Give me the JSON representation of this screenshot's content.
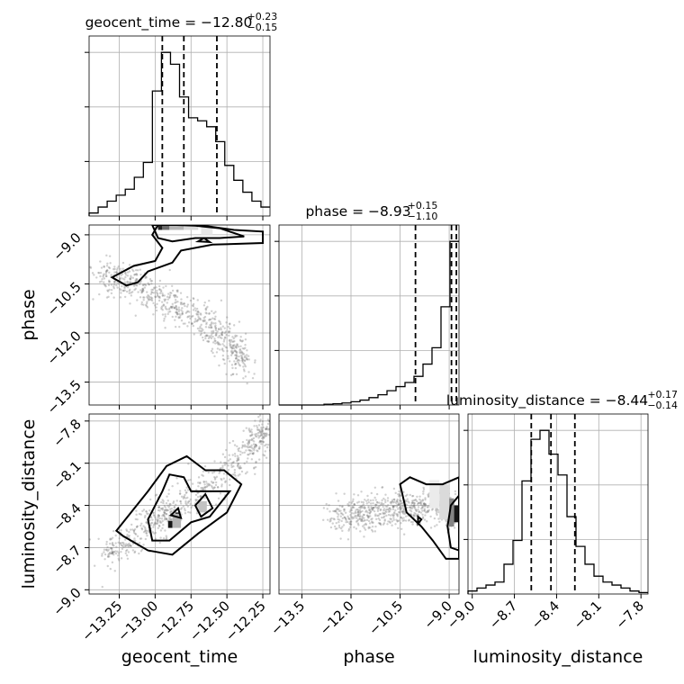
{
  "chart_data": {
    "type": "corner",
    "parameters": [
      "geocent_time",
      "phase",
      "luminosity_distance"
    ],
    "axis_ranges": {
      "geocent_time": [
        -13.46,
        -12.2
      ],
      "phase": [
        -14.2,
        -8.7
      ],
      "luminosity_distance": [
        -9.03,
        -7.75
      ]
    },
    "grid": true,
    "axis_labels": {
      "geocent_time": "geocent_time",
      "phase": "phase",
      "luminosity_distance": "luminosity_distance"
    },
    "ticks": {
      "geocent_time": [
        "−13.25",
        "−13.00",
        "−12.75",
        "−12.50",
        "−12.25"
      ],
      "phase": [
        "−13.5",
        "−12.0",
        "−10.5",
        "−9.0"
      ],
      "luminosity_distance": [
        "−9.0",
        "−8.7",
        "−8.4",
        "−8.1",
        "−7.8"
      ]
    },
    "tick_values": {
      "geocent_time": [
        -13.25,
        -13.0,
        -12.75,
        -12.5,
        -12.25
      ],
      "phase": [
        -13.5,
        -12.0,
        -10.5,
        -9.0
      ],
      "luminosity_distance": [
        -9.0,
        -8.7,
        -8.4,
        -8.1,
        -7.8
      ]
    },
    "titles": [
      {
        "param": "geocent_time",
        "text": "geocent_time = −12.80",
        "sup": "+0.23",
        "sub": "−0.15"
      },
      {
        "param": "phase",
        "text": "phase = −8.93",
        "sup": "+0.15",
        "sub": "−1.10"
      },
      {
        "param": "luminosity_distance",
        "text": "luminosity_distance = −8.44",
        "sup": "+0.17",
        "sub": "−0.14"
      }
    ],
    "quantiles": {
      "geocent_time": [
        -12.95,
        -12.8,
        -12.57
      ],
      "phase": [
        -10.03,
        -8.93,
        -8.78
      ],
      "luminosity_distance": [
        -8.58,
        -8.44,
        -8.27
      ]
    },
    "histograms": {
      "geocent_time": {
        "edges": [
          -13.46,
          -13.397,
          -13.334,
          -13.271,
          -13.208,
          -13.145,
          -13.082,
          -13.019,
          -12.956,
          -12.893,
          -12.83,
          -12.767,
          -12.704,
          -12.641,
          -12.578,
          -12.515,
          -12.452,
          -12.389,
          -12.326,
          -12.263,
          -12.2
        ],
        "counts": [
          1,
          3,
          5,
          7,
          9,
          13,
          18,
          42,
          55,
          51,
          40,
          33,
          32,
          30,
          25,
          17,
          12,
          8,
          5,
          3
        ]
      },
      "phase": {
        "edges": [
          -14.2,
          -13.925,
          -13.65,
          -13.375,
          -13.1,
          -12.825,
          -12.55,
          -12.275,
          -12.0,
          -11.725,
          -11.45,
          -11.175,
          -10.9,
          -10.625,
          -10.35,
          -10.075,
          -9.8,
          -9.525,
          -9.25,
          -8.975,
          -8.7
        ],
        "counts": [
          0,
          0,
          0,
          0,
          0,
          0.2,
          0.3,
          0.5,
          0.8,
          1.2,
          1.8,
          2.5,
          3.5,
          4.5,
          5.5,
          7,
          10,
          14,
          24,
          40
        ]
      },
      "luminosity_distance": {
        "edges": [
          -9.03,
          -8.966,
          -8.902,
          -8.838,
          -8.774,
          -8.71,
          -8.646,
          -8.582,
          -8.518,
          -8.454,
          -8.39,
          -8.326,
          -8.262,
          -8.198,
          -8.134,
          -8.07,
          -8.006,
          -7.942,
          -7.878,
          -7.814,
          -7.75
        ],
        "counts": [
          1,
          2,
          3,
          4,
          10,
          18,
          38,
          52,
          55,
          47,
          40,
          26,
          16,
          10,
          6,
          4,
          3,
          2,
          1,
          0.5
        ]
      }
    },
    "joint_panels": [
      {
        "x": "geocent_time",
        "y": "phase",
        "density_cells": [
          {
            "x": -12.98,
            "y": -8.85,
            "w": 0.03,
            "h": 0.25,
            "level": 0.9
          },
          {
            "x": -12.95,
            "y": -8.85,
            "w": 0.05,
            "h": 0.25,
            "level": 0.6
          },
          {
            "x": -12.9,
            "y": -8.85,
            "w": 0.1,
            "h": 0.25,
            "level": 0.3
          },
          {
            "x": -12.8,
            "y": -8.85,
            "w": 0.1,
            "h": 0.25,
            "level": 0.15
          },
          {
            "x": -12.68,
            "y": -9.0,
            "w": 0.08,
            "h": 0.3,
            "level": 0.1
          }
        ],
        "contours": [
          [
            [
              -13.02,
              -8.7
            ],
            [
              -12.98,
              -9.1
            ],
            [
              -12.88,
              -9.2
            ],
            [
              -12.72,
              -9.1
            ],
            [
              -12.55,
              -9.1
            ],
            [
              -12.38,
              -9.05
            ],
            [
              -12.55,
              -8.8
            ],
            [
              -12.72,
              -8.72
            ],
            [
              -12.85,
              -8.7
            ]
          ],
          [
            [
              -13.3,
              -10.3
            ],
            [
              -13.15,
              -9.95
            ],
            [
              -13.0,
              -9.8
            ],
            [
              -12.95,
              -9.4
            ],
            [
              -13.02,
              -9.0
            ],
            [
              -12.98,
              -8.7
            ],
            [
              -12.85,
              -8.7
            ],
            [
              -12.7,
              -8.7
            ],
            [
              -12.45,
              -8.85
            ],
            [
              -12.25,
              -8.9
            ],
            [
              -12.25,
              -9.25
            ],
            [
              -12.6,
              -9.3
            ],
            [
              -12.82,
              -9.48
            ],
            [
              -12.88,
              -9.85
            ],
            [
              -13.05,
              -10.12
            ],
            [
              -13.12,
              -10.45
            ],
            [
              -13.2,
              -10.55
            ]
          ],
          [
            [
              -12.7,
              -9.2
            ],
            [
              -12.66,
              -9.1
            ],
            [
              -12.62,
              -9.22
            ]
          ]
        ],
        "scatter_trend": [
          [
            -13.38,
            -10.3
          ],
          [
            -13.25,
            -10.25
          ],
          [
            -13.1,
            -10.6
          ],
          [
            -12.95,
            -11.0
          ],
          [
            -12.75,
            -11.4
          ],
          [
            -12.6,
            -11.8
          ],
          [
            -12.48,
            -12.4
          ],
          [
            -12.38,
            -12.95
          ]
        ]
      },
      {
        "x": "geocent_time",
        "y": "luminosity_distance",
        "density_cells": [
          {
            "x": -12.91,
            "y": -8.56,
            "w": 0.03,
            "h": 0.05,
            "level": 0.95
          },
          {
            "x": -12.86,
            "y": -8.5,
            "w": 0.03,
            "h": 0.05,
            "level": 0.85
          },
          {
            "x": -12.88,
            "y": -8.56,
            "w": 0.06,
            "h": 0.1,
            "level": 0.3
          },
          {
            "x": -12.7,
            "y": -8.45,
            "w": 0.06,
            "h": 0.08,
            "level": 0.25
          }
        ],
        "contours": [
          [
            [
              -13.27,
              -8.58
            ],
            [
              -13.05,
              -8.3
            ],
            [
              -12.92,
              -8.12
            ],
            [
              -12.78,
              -8.05
            ],
            [
              -12.65,
              -8.15
            ],
            [
              -12.52,
              -8.15
            ],
            [
              -12.4,
              -8.25
            ],
            [
              -12.5,
              -8.45
            ],
            [
              -12.7,
              -8.6
            ],
            [
              -12.88,
              -8.75
            ],
            [
              -13.05,
              -8.72
            ],
            [
              -13.22,
              -8.62
            ]
          ],
          [
            [
              -13.05,
              -8.5
            ],
            [
              -12.95,
              -8.3
            ],
            [
              -12.9,
              -8.18
            ],
            [
              -12.8,
              -8.2
            ],
            [
              -12.75,
              -8.3
            ],
            [
              -12.6,
              -8.3
            ],
            [
              -12.48,
              -8.3
            ],
            [
              -12.62,
              -8.48
            ],
            [
              -12.75,
              -8.52
            ],
            [
              -12.9,
              -8.65
            ],
            [
              -13.02,
              -8.65
            ]
          ],
          [
            [
              -12.72,
              -8.4
            ],
            [
              -12.65,
              -8.32
            ],
            [
              -12.6,
              -8.42
            ],
            [
              -12.68,
              -8.48
            ]
          ],
          [
            [
              -12.89,
              -8.47
            ],
            [
              -12.84,
              -8.42
            ],
            [
              -12.82,
              -8.49
            ]
          ]
        ],
        "scatter_trend": [
          [
            -13.35,
            -8.75
          ],
          [
            -13.1,
            -8.6
          ],
          [
            -12.85,
            -8.4
          ],
          [
            -12.6,
            -8.25
          ],
          [
            -12.35,
            -8.0
          ],
          [
            -12.22,
            -7.85
          ]
        ]
      },
      {
        "x": "phase",
        "y": "luminosity_distance",
        "density_cells": [
          {
            "x": -8.85,
            "y": -8.52,
            "w": 0.15,
            "h": 0.12,
            "level": 0.95
          },
          {
            "x": -9.0,
            "y": -8.55,
            "w": 0.15,
            "h": 0.2,
            "level": 0.5
          },
          {
            "x": -9.3,
            "y": -8.5,
            "w": 0.3,
            "h": 0.25,
            "level": 0.15
          },
          {
            "x": -9.6,
            "y": -8.42,
            "w": 0.3,
            "h": 0.2,
            "level": 0.08
          }
        ],
        "contours": [
          [
            [
              -10.5,
              -8.25
            ],
            [
              -10.2,
              -8.2
            ],
            [
              -9.7,
              -8.25
            ],
            [
              -9.2,
              -8.25
            ],
            [
              -8.7,
              -8.2
            ],
            [
              -8.7,
              -8.78
            ],
            [
              -9.1,
              -8.78
            ],
            [
              -9.5,
              -8.65
            ],
            [
              -9.85,
              -8.55
            ],
            [
              -10.3,
              -8.45
            ]
          ],
          [
            [
              -8.7,
              -8.33
            ],
            [
              -8.95,
              -8.4
            ],
            [
              -9.05,
              -8.55
            ],
            [
              -8.95,
              -8.7
            ],
            [
              -8.7,
              -8.72
            ]
          ],
          [
            [
              -9.95,
              -8.48
            ],
            [
              -9.85,
              -8.5
            ],
            [
              -9.95,
              -8.53
            ]
          ]
        ],
        "scatter_trend": [
          [
            -12.5,
            -8.5
          ],
          [
            -11.5,
            -8.45
          ],
          [
            -10.5,
            -8.42
          ],
          [
            -9.5,
            -8.4
          ],
          [
            -8.8,
            -8.45
          ]
        ]
      }
    ]
  }
}
